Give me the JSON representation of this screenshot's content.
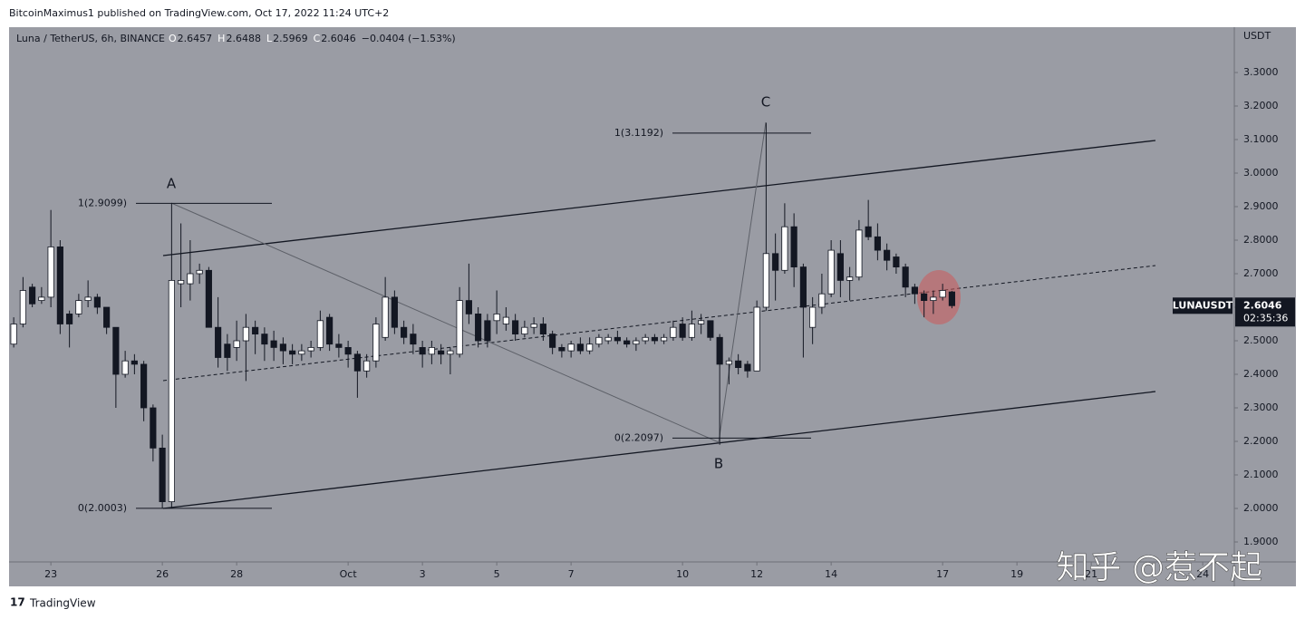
{
  "header": "BitcoinMaximus1 published on TradingView.com, Oct 17, 2022 11:24 UTC+2",
  "footer": "TradingView",
  "watermark": "知乎 @惹不起",
  "chart_data": {
    "type": "candlestick",
    "symbol": "Luna / TetherUS, 6h, BINANCE",
    "legend": [
      {
        "key": "O",
        "value": "2.6457"
      },
      {
        "key": "H",
        "value": "2.6488"
      },
      {
        "key": "L",
        "value": "2.5969"
      },
      {
        "key": "C",
        "value": "2.6046"
      }
    ],
    "change": "−0.0404 (−1.53%)",
    "axis_unit": "USDT",
    "symbol_tag": "LUNAUSDT",
    "last_price": "2.6046",
    "countdown": "02:35:36",
    "up_color": "#ffffff",
    "down_color": "#131722",
    "open": [
      2.49,
      2.55,
      2.66,
      2.62,
      2.63,
      2.78,
      2.58,
      2.58,
      2.62,
      2.63,
      2.6,
      2.54,
      2.4,
      2.44,
      2.43,
      2.3,
      2.18,
      2.02,
      2.67,
      2.67,
      2.7,
      2.71,
      2.54,
      2.49,
      2.48,
      2.5,
      2.54,
      2.52,
      2.5,
      2.49,
      2.47,
      2.46,
      2.47,
      2.48,
      2.57,
      2.49,
      2.48,
      2.46,
      2.41,
      2.44,
      2.51,
      2.63,
      2.54,
      2.52,
      2.48,
      2.46,
      2.47,
      2.46,
      2.46,
      2.62,
      2.58,
      2.56,
      2.56,
      2.55,
      2.56,
      2.52,
      2.54,
      2.55,
      2.52,
      2.48,
      2.47,
      2.49,
      2.47,
      2.49,
      2.5,
      2.51,
      2.5,
      2.49,
      2.5,
      2.51,
      2.5,
      2.51,
      2.55,
      2.51,
      2.55,
      2.56,
      2.51,
      2.43,
      2.44,
      2.43,
      2.41,
      2.6,
      2.76,
      2.71,
      2.84,
      2.72,
      2.54,
      2.6,
      2.64,
      2.76,
      2.68,
      2.69,
      2.84,
      2.81,
      2.77,
      2.75,
      2.72,
      2.66,
      2.64,
      2.62,
      2.63,
      2.6457
    ],
    "high": [
      2.57,
      2.69,
      2.67,
      2.66,
      2.89,
      2.8,
      2.59,
      2.64,
      2.68,
      2.64,
      2.6,
      2.54,
      2.47,
      2.46,
      2.44,
      2.31,
      2.22,
      2.91,
      2.85,
      2.8,
      2.73,
      2.72,
      2.63,
      2.52,
      2.56,
      2.58,
      2.56,
      2.54,
      2.53,
      2.51,
      2.49,
      2.49,
      2.5,
      2.59,
      2.58,
      2.52,
      2.5,
      2.47,
      2.46,
      2.57,
      2.69,
      2.65,
      2.56,
      2.55,
      2.5,
      2.5,
      2.49,
      2.48,
      2.66,
      2.73,
      2.6,
      2.58,
      2.65,
      2.6,
      2.58,
      2.56,
      2.57,
      2.57,
      2.53,
      2.49,
      2.5,
      2.51,
      2.51,
      2.52,
      2.52,
      2.53,
      2.51,
      2.51,
      2.52,
      2.52,
      2.52,
      2.56,
      2.57,
      2.59,
      2.58,
      2.56,
      2.52,
      2.45,
      2.46,
      2.44,
      2.62,
      3.15,
      2.82,
      2.91,
      2.88,
      2.73,
      2.63,
      2.7,
      2.8,
      2.8,
      2.72,
      2.86,
      2.92,
      2.85,
      2.79,
      2.76,
      2.73,
      2.67,
      2.65,
      2.65,
      2.67,
      2.6488
    ],
    "low": [
      2.48,
      2.54,
      2.6,
      2.61,
      2.6,
      2.52,
      2.48,
      2.57,
      2.6,
      2.58,
      2.52,
      2.3,
      2.39,
      2.4,
      2.26,
      2.14,
      2.0,
      2.0,
      2.6,
      2.62,
      2.67,
      2.54,
      2.42,
      2.41,
      2.44,
      2.38,
      2.46,
      2.44,
      2.44,
      2.43,
      2.43,
      2.44,
      2.45,
      2.47,
      2.47,
      2.45,
      2.42,
      2.33,
      2.39,
      2.42,
      2.5,
      2.52,
      2.49,
      2.46,
      2.42,
      2.43,
      2.43,
      2.4,
      2.45,
      2.55,
      2.48,
      2.48,
      2.52,
      2.53,
      2.5,
      2.51,
      2.52,
      2.5,
      2.46,
      2.45,
      2.45,
      2.46,
      2.46,
      2.48,
      2.49,
      2.49,
      2.48,
      2.47,
      2.49,
      2.49,
      2.49,
      2.5,
      2.5,
      2.5,
      2.52,
      2.5,
      2.19,
      2.37,
      2.4,
      2.39,
      2.41,
      2.59,
      2.62,
      2.7,
      2.66,
      2.45,
      2.49,
      2.58,
      2.63,
      2.63,
      2.62,
      2.68,
      2.8,
      2.74,
      2.71,
      2.7,
      2.63,
      2.61,
      2.57,
      2.58,
      2.62,
      2.5969
    ],
    "close": [
      2.55,
      2.65,
      2.61,
      2.63,
      2.78,
      2.55,
      2.55,
      2.62,
      2.63,
      2.6,
      2.54,
      2.4,
      2.44,
      2.43,
      2.3,
      2.18,
      2.02,
      2.68,
      2.68,
      2.7,
      2.71,
      2.54,
      2.45,
      2.45,
      2.5,
      2.54,
      2.52,
      2.49,
      2.48,
      2.47,
      2.46,
      2.47,
      2.48,
      2.56,
      2.49,
      2.48,
      2.46,
      2.41,
      2.44,
      2.55,
      2.63,
      2.54,
      2.51,
      2.49,
      2.46,
      2.48,
      2.46,
      2.47,
      2.62,
      2.58,
      2.5,
      2.5,
      2.58,
      2.57,
      2.52,
      2.54,
      2.55,
      2.52,
      2.48,
      2.47,
      2.49,
      2.47,
      2.49,
      2.51,
      2.51,
      2.5,
      2.49,
      2.5,
      2.51,
      2.5,
      2.51,
      2.54,
      2.51,
      2.55,
      2.56,
      2.51,
      2.43,
      2.44,
      2.42,
      2.41,
      2.6,
      2.76,
      2.71,
      2.84,
      2.72,
      2.6,
      2.6,
      2.64,
      2.77,
      2.68,
      2.69,
      2.83,
      2.81,
      2.77,
      2.74,
      2.72,
      2.66,
      2.64,
      2.62,
      2.63,
      2.65,
      2.6046
    ],
    "xlim": [
      -0.5,
      131.4
    ],
    "xticks": [
      {
        "value": 4,
        "label": "23"
      },
      {
        "value": 16,
        "label": "26"
      },
      {
        "value": 24,
        "label": "28"
      },
      {
        "value": 36,
        "label": "Oct"
      },
      {
        "value": 44,
        "label": "3"
      },
      {
        "value": 52,
        "label": "5"
      },
      {
        "value": 60,
        "label": "7"
      },
      {
        "value": 72,
        "label": "10"
      },
      {
        "value": 80,
        "label": "12"
      },
      {
        "value": 88,
        "label": "14"
      },
      {
        "value": 100,
        "label": "17"
      },
      {
        "value": 108,
        "label": "19"
      },
      {
        "value": 116,
        "label": "21"
      },
      {
        "value": 128,
        "label": "24"
      }
    ],
    "ylim": [
      1.8541,
      3.4,
      "placeholder-removed"
    ],
    "yticks": [
      {
        "value": 1.9,
        "label": "1.9000"
      },
      {
        "value": 2.0,
        "label": "2.0000"
      },
      {
        "value": 2.1,
        "label": "2.1000"
      },
      {
        "value": 2.2,
        "label": "2.2000"
      },
      {
        "value": 2.3,
        "label": "2.3000"
      },
      {
        "value": 2.4,
        "label": "2.4000"
      },
      {
        "value": 2.5,
        "label": "2.5000"
      },
      {
        "value": 2.6,
        "label": "2.6000"
      },
      {
        "value": 2.7,
        "label": "2.7000"
      },
      {
        "value": 2.8,
        "label": "2.8000"
      },
      {
        "value": 2.9,
        "label": "2.9000"
      },
      {
        "value": 3.0,
        "label": "3.0000"
      },
      {
        "value": 3.1,
        "label": "3.1000"
      },
      {
        "value": 3.2,
        "label": "3.2000"
      },
      {
        "value": 3.3,
        "label": "3.3000"
      }
    ],
    "grid": false,
    "fib_levels": [
      {
        "value": 2.9099,
        "label": "1(2.9099)"
      },
      {
        "value": 2.0003,
        "label": "0(2.0003)"
      },
      {
        "value": 3.1192,
        "label": "1(3.1192)"
      },
      {
        "value": 2.2097,
        "label": "0(2.2097)"
      }
    ],
    "points": [
      "A",
      "B",
      "C"
    ]
  }
}
